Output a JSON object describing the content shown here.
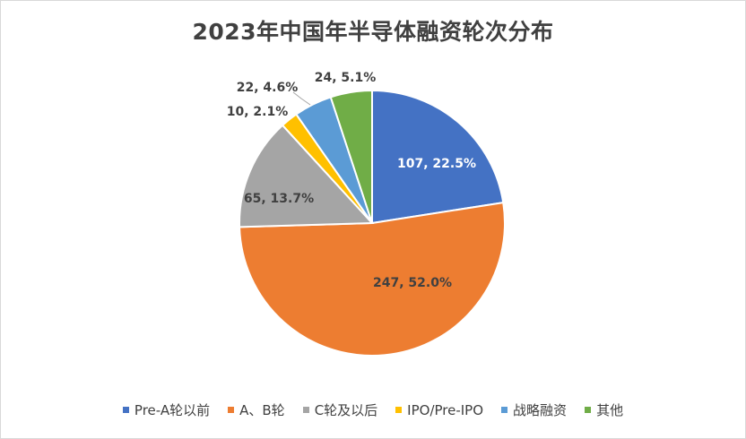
{
  "chart_data": {
    "type": "pie",
    "title": "2023年中国年半导体融资轮次分布",
    "slices": [
      {
        "name": "Pre-A轮以前",
        "value": 107,
        "percent": "22.5%",
        "color": "#4472c4",
        "label": "107, 22.5%"
      },
      {
        "name": "A、B轮",
        "value": 247,
        "percent": "52.0%",
        "color": "#ed7d31",
        "label": "247, 52.0%"
      },
      {
        "name": "C轮及以后",
        "value": 65,
        "percent": "13.7%",
        "color": "#a5a5a5",
        "label": "65, 13.7%"
      },
      {
        "name": "IPO/Pre-IPO",
        "value": 10,
        "percent": "2.1%",
        "color": "#ffc000",
        "label": "10, 2.1%"
      },
      {
        "name": "战略融资",
        "value": 22,
        "percent": "4.6%",
        "color": "#5b9bd5",
        "label": "22, 4.6%"
      },
      {
        "name": "其他",
        "value": 24,
        "percent": "5.1%",
        "color": "#70ad47",
        "label": "24, 5.1%"
      }
    ],
    "legend_position": "bottom"
  }
}
